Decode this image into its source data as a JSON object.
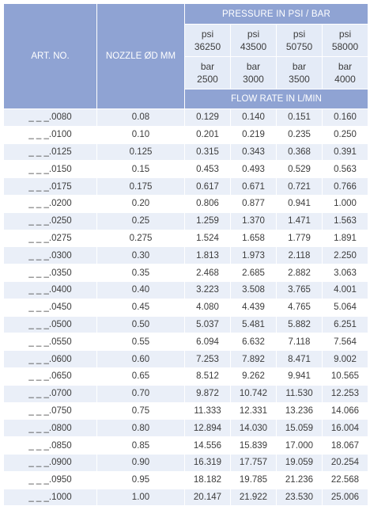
{
  "headers": {
    "art_no": "ART. NO.",
    "nozzle": "NOZZLE ØD MM",
    "pressure": "PRESSURE IN PSI / BAR",
    "flow_rate": "FLOW RATE IN L/MIN"
  },
  "psi": [
    {
      "unit": "psi",
      "value": "36250"
    },
    {
      "unit": "psi",
      "value": "43500"
    },
    {
      "unit": "psi",
      "value": "50750"
    },
    {
      "unit": "psi",
      "value": "58000"
    }
  ],
  "bar": [
    {
      "unit": "bar",
      "value": "2500"
    },
    {
      "unit": "bar",
      "value": "3000"
    },
    {
      "unit": "bar",
      "value": "3500"
    },
    {
      "unit": "bar",
      "value": "4000"
    }
  ],
  "rows": [
    {
      "art": "_ _ _.0080",
      "nozzle": "0.08",
      "flows": [
        "0.129",
        "0.140",
        "0.151",
        "0.160"
      ]
    },
    {
      "art": "_ _ _.0100",
      "nozzle": "0.10",
      "flows": [
        "0.201",
        "0.219",
        "0.235",
        "0.250"
      ]
    },
    {
      "art": "_ _ _.0125",
      "nozzle": "0.125",
      "flows": [
        "0.315",
        "0.343",
        "0.368",
        "0.391"
      ]
    },
    {
      "art": "_ _ _.0150",
      "nozzle": "0.15",
      "flows": [
        "0.453",
        "0.493",
        "0.529",
        "0.563"
      ]
    },
    {
      "art": "_ _ _.0175",
      "nozzle": "0.175",
      "flows": [
        "0.617",
        "0.671",
        "0.721",
        "0.766"
      ]
    },
    {
      "art": "_ _ _.0200",
      "nozzle": "0.20",
      "flows": [
        "0.806",
        "0.877",
        "0.941",
        "1.000"
      ]
    },
    {
      "art": "_ _ _.0250",
      "nozzle": "0.25",
      "flows": [
        "1.259",
        "1.370",
        "1.471",
        "1.563"
      ]
    },
    {
      "art": "_ _ _.0275",
      "nozzle": "0.275",
      "flows": [
        "1.524",
        "1.658",
        "1.779",
        "1.891"
      ]
    },
    {
      "art": "_ _ _.0300",
      "nozzle": "0.30",
      "flows": [
        "1.813",
        "1.973",
        "2.118",
        "2.250"
      ]
    },
    {
      "art": "_ _ _.0350",
      "nozzle": "0.35",
      "flows": [
        "2.468",
        "2.685",
        "2.882",
        "3.063"
      ]
    },
    {
      "art": "_ _ _.0400",
      "nozzle": "0.40",
      "flows": [
        "3.223",
        "3.508",
        "3.765",
        "4.001"
      ]
    },
    {
      "art": "_ _ _.0450",
      "nozzle": "0.45",
      "flows": [
        "4.080",
        "4.439",
        "4.765",
        "5.064"
      ]
    },
    {
      "art": "_ _ _.0500",
      "nozzle": "0.50",
      "flows": [
        "5.037",
        "5.481",
        "5.882",
        "6.251"
      ]
    },
    {
      "art": "_ _ _.0550",
      "nozzle": "0.55",
      "flows": [
        "6.094",
        "6.632",
        "7.118",
        "7.564"
      ]
    },
    {
      "art": "_ _ _.0600",
      "nozzle": "0.60",
      "flows": [
        "7.253",
        "7.892",
        "8.471",
        "9.002"
      ]
    },
    {
      "art": "_ _ _.0650",
      "nozzle": "0.65",
      "flows": [
        "8.512",
        "9.262",
        "9.941",
        "10.565"
      ]
    },
    {
      "art": "_ _ _.0700",
      "nozzle": "0.70",
      "flows": [
        "9.872",
        "10.742",
        "11.530",
        "12.253"
      ]
    },
    {
      "art": "_ _ _.0750",
      "nozzle": "0.75",
      "flows": [
        "11.333",
        "12.331",
        "13.236",
        "14.066"
      ]
    },
    {
      "art": "_ _ _.0800",
      "nozzle": "0.80",
      "flows": [
        "12.894",
        "14.030",
        "15.059",
        "16.004"
      ]
    },
    {
      "art": "_ _ _.0850",
      "nozzle": "0.85",
      "flows": [
        "14.556",
        "15.839",
        "17.000",
        "18.067"
      ]
    },
    {
      "art": "_ _ _.0900",
      "nozzle": "0.90",
      "flows": [
        "16.319",
        "17.757",
        "19.059",
        "20.254"
      ]
    },
    {
      "art": "_ _ _.0950",
      "nozzle": "0.95",
      "flows": [
        "18.182",
        "19.785",
        "21.236",
        "22.568"
      ]
    },
    {
      "art": "_ _ _.1000",
      "nozzle": "1.00",
      "flows": [
        "20.147",
        "21.922",
        "23.530",
        "25.006"
      ]
    }
  ]
}
